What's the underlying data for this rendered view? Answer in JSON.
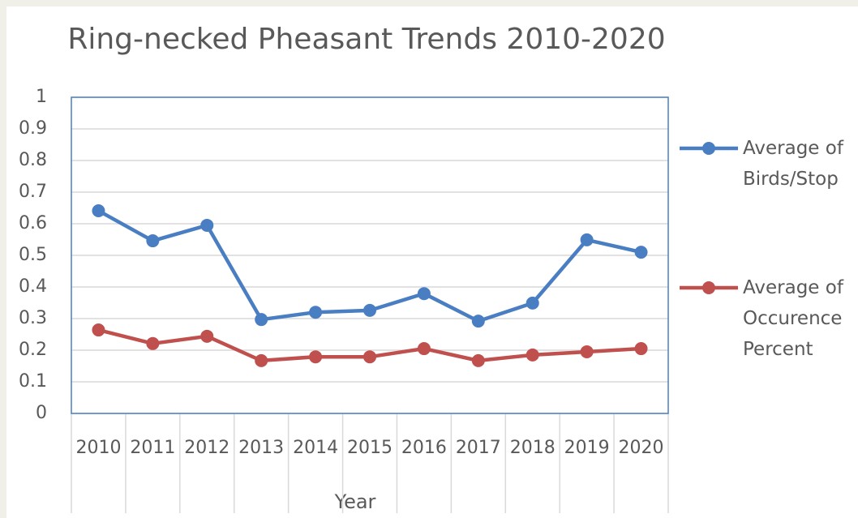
{
  "chart_data": {
    "type": "line",
    "title": "Ring-necked Pheasant Trends 2010-2020",
    "x_label": "Year",
    "categories": [
      "2010",
      "2011",
      "2012",
      "2013",
      "2014",
      "2015",
      "2016",
      "2017",
      "2018",
      "2019",
      "2020"
    ],
    "series": [
      {
        "name": "Average of Birds/Stop",
        "color": "#4a7ec2",
        "values": [
          0.641,
          0.546,
          0.595,
          0.297,
          0.32,
          0.326,
          0.379,
          0.292,
          0.349,
          0.549,
          0.51
        ]
      },
      {
        "name": "Average of Occurence Percent",
        "color": "#c0504d",
        "values": [
          0.264,
          0.221,
          0.244,
          0.167,
          0.179,
          0.179,
          0.205,
          0.167,
          0.185,
          0.195,
          0.205
        ]
      }
    ],
    "ylim": [
      0,
      1
    ],
    "yticks": [
      0,
      0.1,
      0.2,
      0.3,
      0.4,
      0.5,
      0.6,
      0.7,
      0.8,
      0.9,
      1
    ],
    "grid": true,
    "legend": "right"
  }
}
